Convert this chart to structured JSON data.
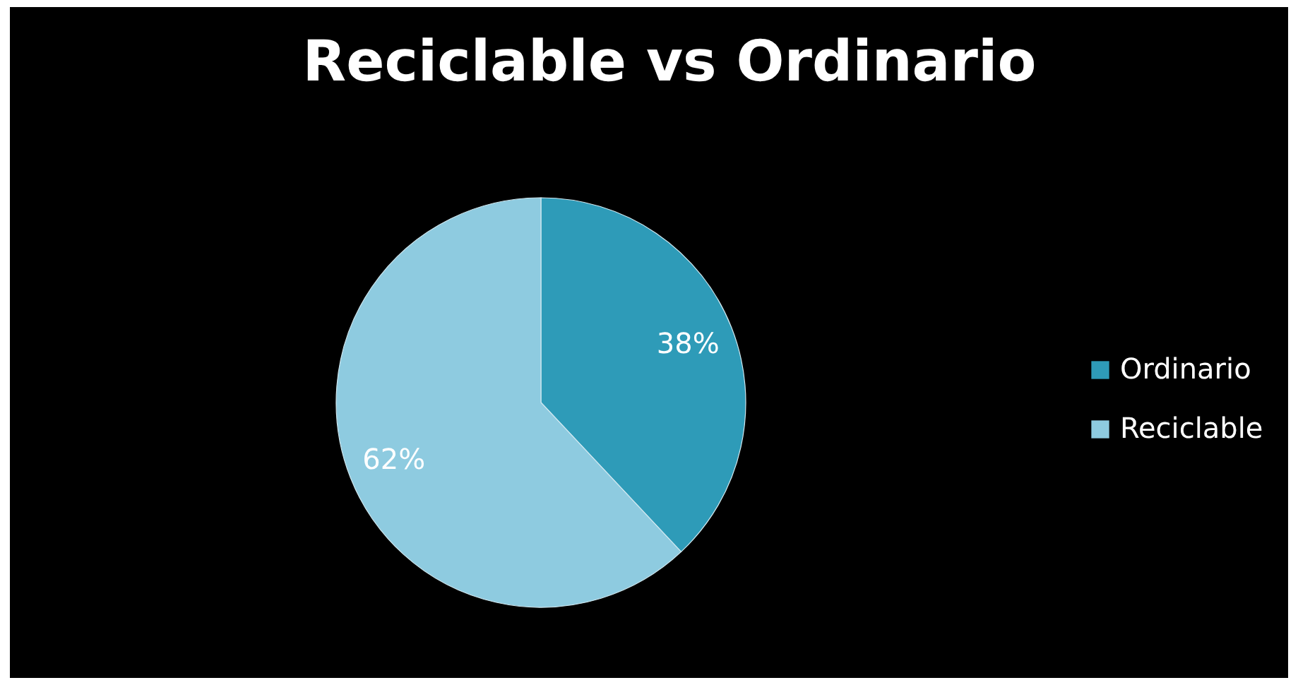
{
  "chart_data": {
    "type": "pie",
    "title": "Reciclable vs Ordinario",
    "categories": [
      "Ordinario",
      "Reciclable"
    ],
    "values": [
      38,
      62
    ],
    "colors": [
      "#2e9bb8",
      "#8ecbe0"
    ],
    "value_labels": [
      "38%",
      "62%"
    ],
    "legend": "right"
  }
}
